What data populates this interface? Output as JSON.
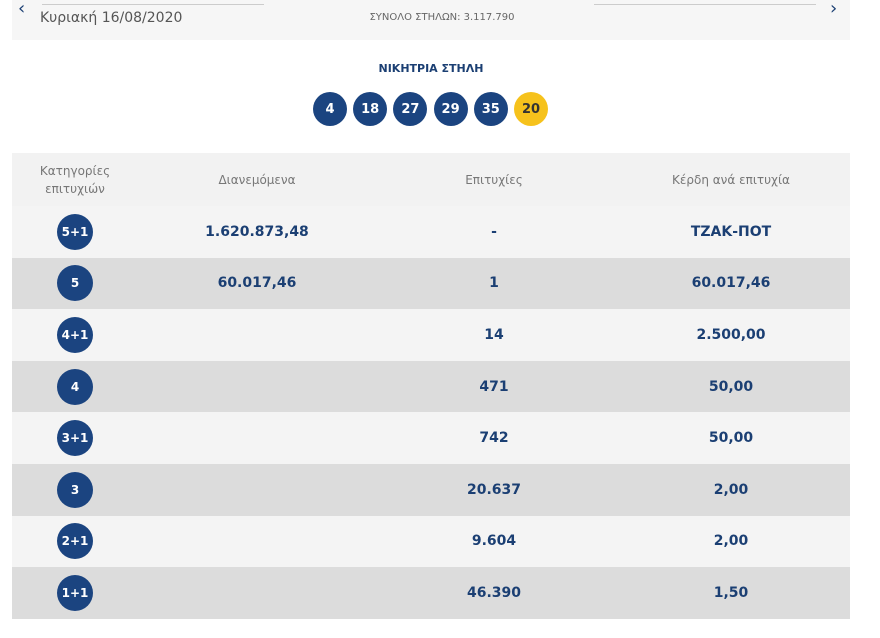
{
  "header": {
    "date": "Κυριακή 16/08/2020",
    "total_columns": "ΣΥΝΟΛΟ ΣΤΗΛΩΝ: 3.117.790"
  },
  "winning": {
    "title": "ΝΙΚΗΤΡΙΑ ΣΤΗΛΗ",
    "numbers": [
      4,
      18,
      27,
      29,
      35
    ],
    "bonus": 20
  },
  "table": {
    "headers": [
      "Κατηγορίες επιτυχιών",
      "Διανεμόμενα",
      "Επιτυχίες",
      "Κέρδη ανά επιτυχία"
    ],
    "rows": [
      [
        "5+1",
        "1.620.873,48",
        "-",
        "ΤΖΑΚ-ΠΟΤ"
      ],
      [
        "5",
        "60.017,46",
        "1",
        "60.017,46"
      ],
      [
        "4+1",
        null,
        "14",
        "2.500,00"
      ],
      [
        "4",
        null,
        "471",
        "50,00"
      ],
      [
        "3+1",
        null,
        "742",
        "50,00"
      ],
      [
        "3",
        null,
        "20.637",
        "2,00"
      ],
      [
        "2+1",
        null,
        "9.604",
        "2,00"
      ],
      [
        "1+1",
        null,
        "46.390",
        "1,50"
      ]
    ]
  }
}
